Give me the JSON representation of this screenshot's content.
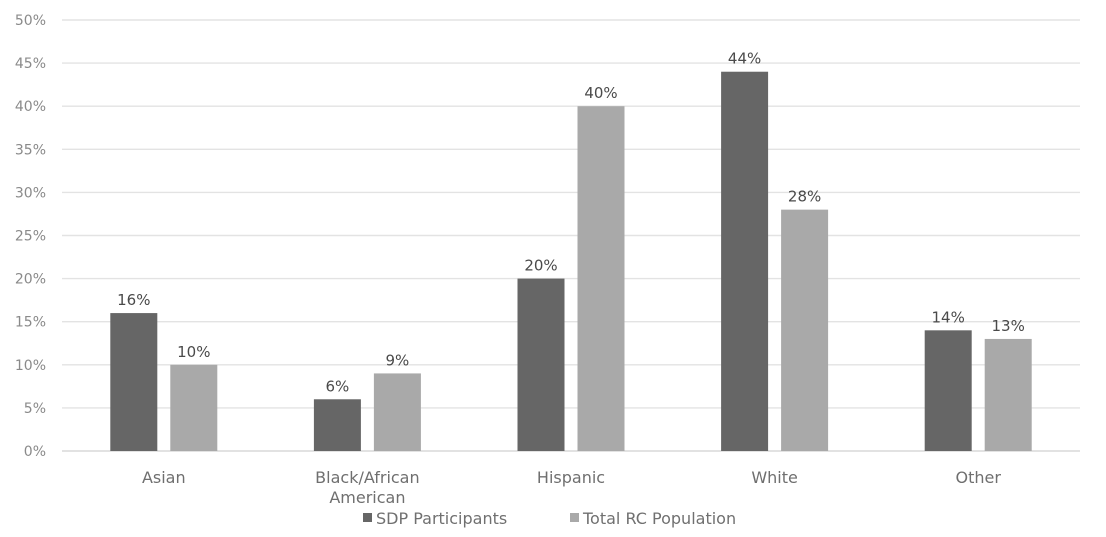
{
  "chart_data": {
    "type": "bar",
    "categories": [
      [
        "Asian"
      ],
      [
        "Black/African",
        "American"
      ],
      [
        "Hispanic"
      ],
      [
        "White"
      ],
      [
        "Other"
      ]
    ],
    "series": [
      {
        "name": "SDP Participants",
        "values": [
          16,
          6,
          20,
          44,
          14
        ],
        "labels": [
          "16%",
          "6%",
          "20%",
          "44%",
          "14%"
        ],
        "color": "#666666"
      },
      {
        "name": "Total RC Population",
        "values": [
          10,
          9,
          40,
          28,
          13
        ],
        "labels": [
          "10%",
          "9%",
          "40%",
          "28%",
          "13%"
        ],
        "color": "#a9a9a9"
      }
    ],
    "ylim": [
      0,
      50
    ],
    "yticks": [
      0,
      5,
      10,
      15,
      20,
      25,
      30,
      35,
      40,
      45,
      50
    ],
    "ytick_labels": [
      "0%",
      "5%",
      "10%",
      "15%",
      "20%",
      "25%",
      "30%",
      "35%",
      "40%",
      "45%",
      "50%"
    ],
    "grid": true,
    "legend": "bottom-center"
  }
}
